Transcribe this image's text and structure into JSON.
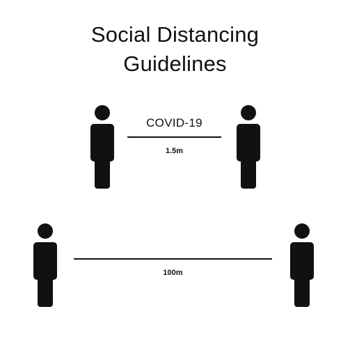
{
  "title": {
    "line1": "Social Distancing",
    "line2": "Guidelines"
  },
  "top_row": {
    "label": "COVID-19",
    "distance": "1.5m"
  },
  "bottom_row": {
    "distance": "100m"
  },
  "colors": {
    "figure": "#111111",
    "background": "#ffffff"
  },
  "icons": [
    "person-icon"
  ]
}
